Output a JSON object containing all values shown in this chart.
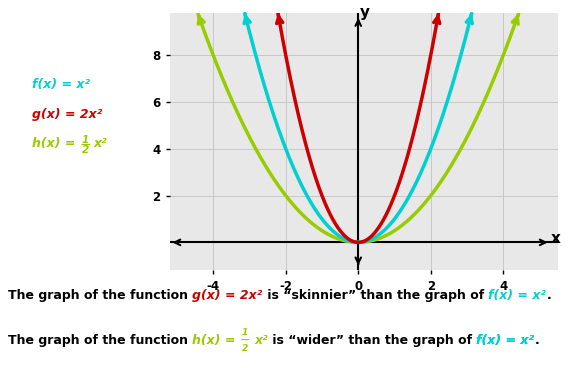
{
  "xlim": [
    -5.2,
    5.5
  ],
  "ylim": [
    -1.2,
    9.8
  ],
  "xticks": [
    -4,
    -2,
    0,
    2,
    4
  ],
  "yticks": [
    2,
    4,
    6,
    8
  ],
  "grid_color": "#c8c8c8",
  "background_color": "#ffffff",
  "plot_bg_color": "#e8e8e8",
  "curve_f_color": "#00d0d0",
  "curve_g_color": "#cc0000",
  "curve_h_color": "#99cc00",
  "axis_color": "#000000",
  "text_color": "#000000"
}
